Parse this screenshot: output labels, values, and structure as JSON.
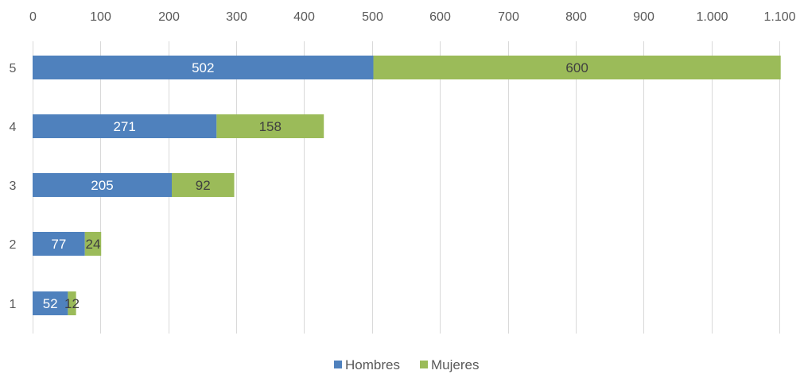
{
  "chart_data": {
    "type": "bar",
    "orientation": "horizontal",
    "stacked": true,
    "categories": [
      "1",
      "2",
      "3",
      "4",
      "5"
    ],
    "series": [
      {
        "name": "Hombres",
        "color": "#4f81bd",
        "label_color": "#ffffff",
        "values": [
          52,
          77,
          205,
          271,
          502
        ]
      },
      {
        "name": "Mujeres",
        "color": "#9bbb59",
        "label_color": "#404040",
        "values": [
          12,
          24,
          92,
          158,
          600
        ]
      }
    ],
    "xlim": [
      0,
      1100
    ],
    "x_ticks": [
      0,
      100,
      200,
      300,
      400,
      500,
      600,
      700,
      800,
      900,
      1000,
      1100
    ],
    "x_tick_labels": [
      "0",
      "100",
      "200",
      "300",
      "400",
      "500",
      "600",
      "700",
      "800",
      "900",
      "1.000",
      "1.100"
    ],
    "x_axis_position": "top",
    "grid": true,
    "legend_position": "bottom",
    "data_labels": true
  }
}
